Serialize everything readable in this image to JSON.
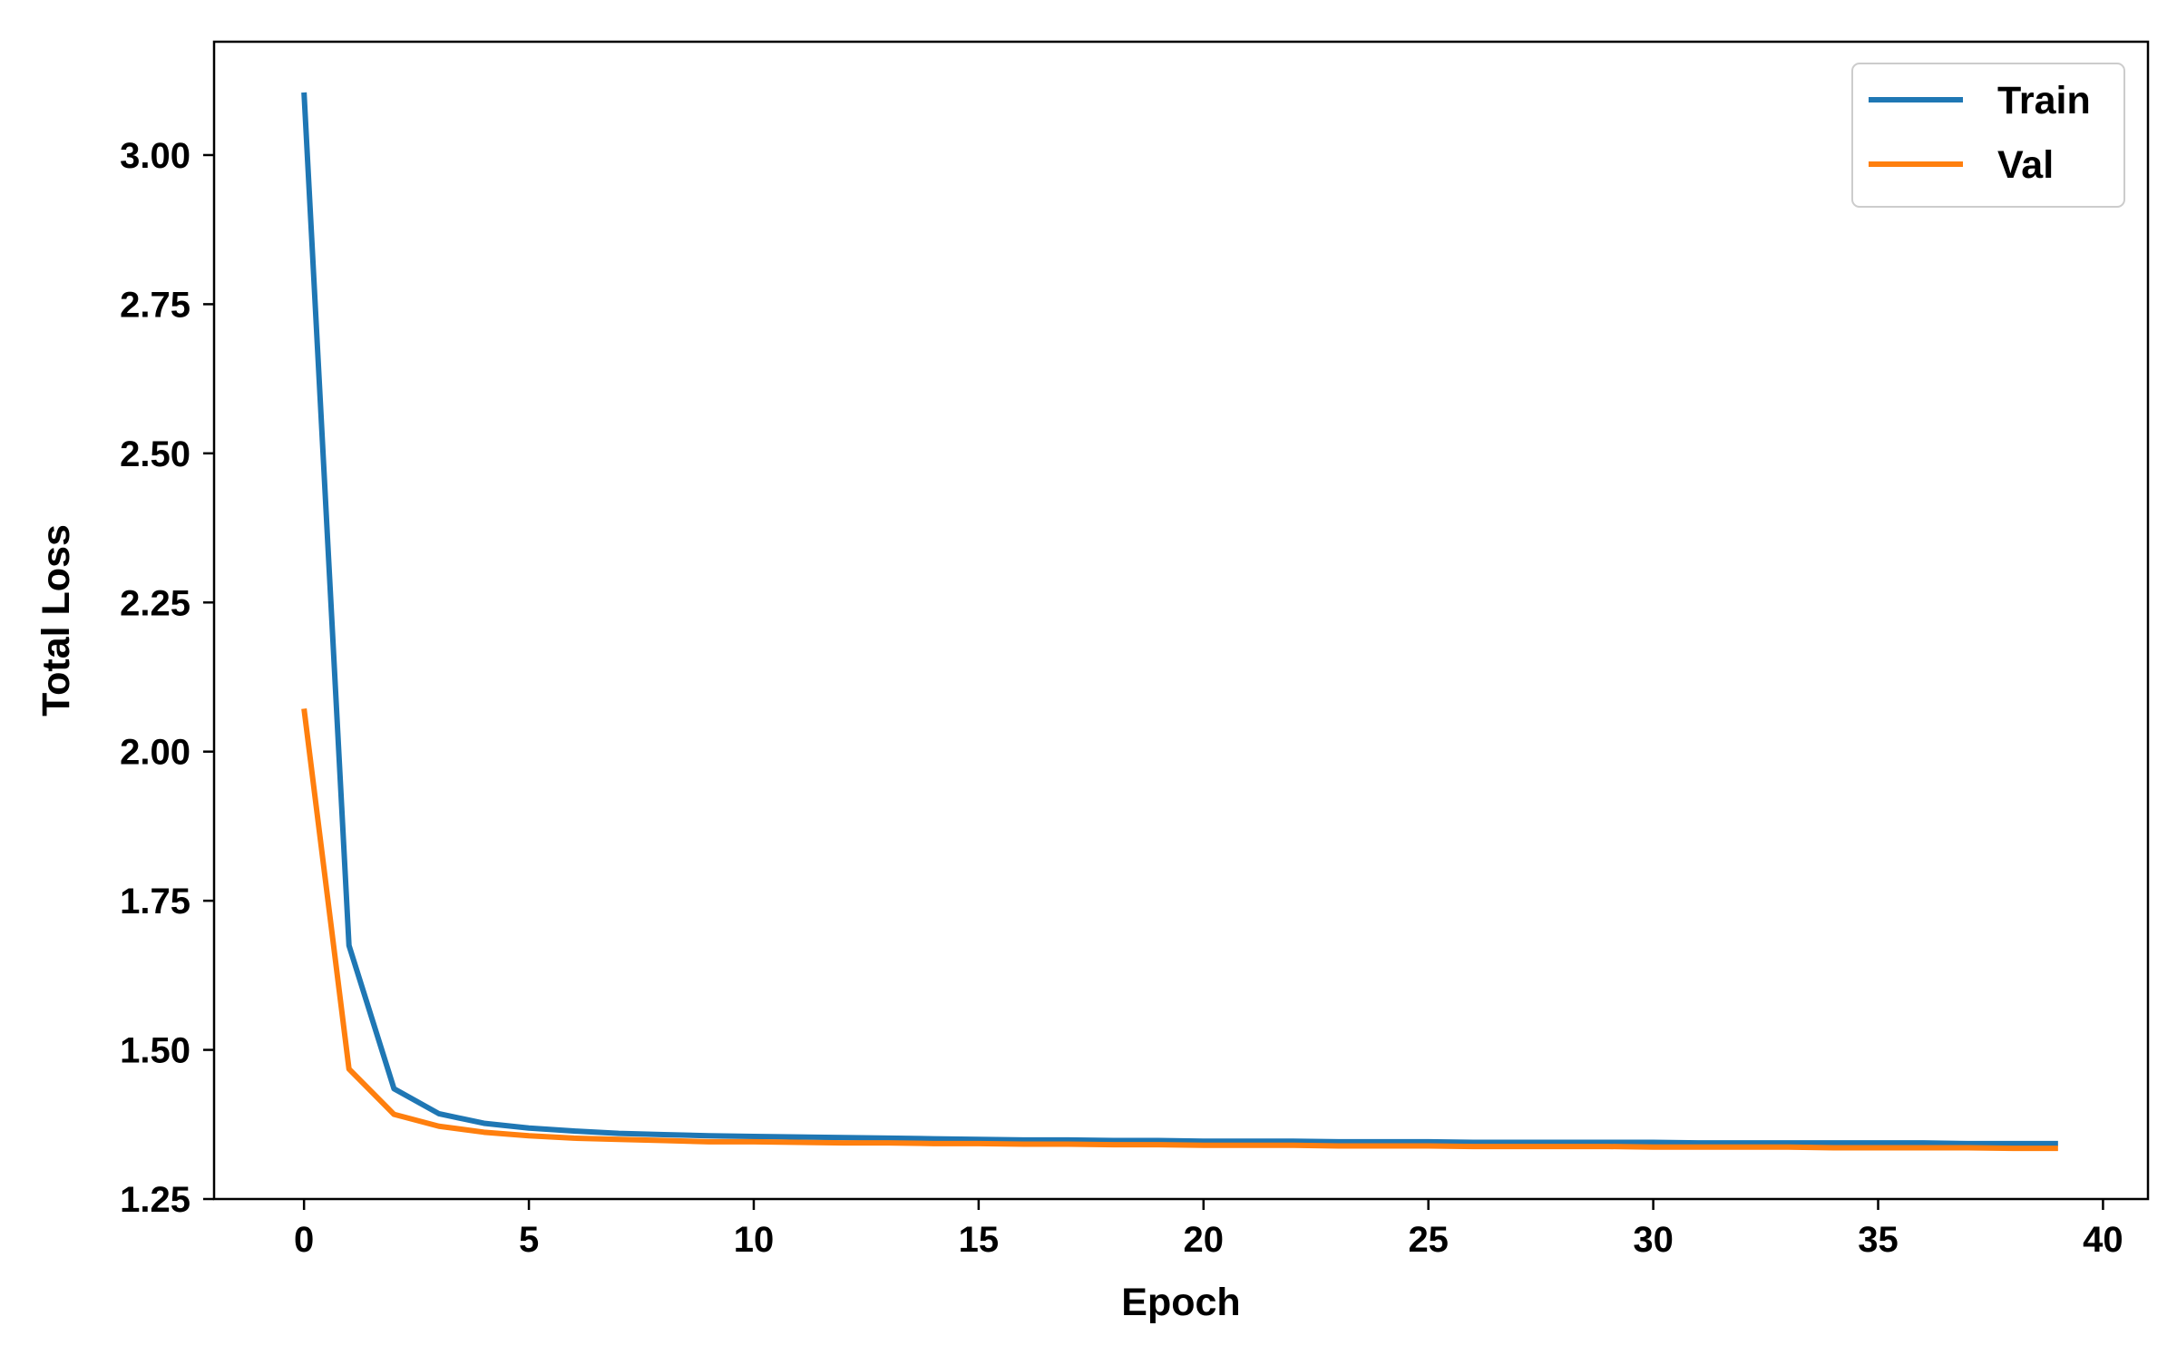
{
  "chart_data": {
    "type": "line",
    "title": "",
    "xlabel": "Epoch",
    "ylabel": "Total Loss",
    "xlim": [
      -2,
      41
    ],
    "ylim": [
      1.25,
      3.19
    ],
    "xticks": [
      0,
      5,
      10,
      15,
      20,
      25,
      30,
      35,
      40
    ],
    "yticks": [
      1.25,
      1.5,
      1.75,
      2.0,
      2.25,
      2.5,
      2.75,
      3.0
    ],
    "xtick_labels": [
      "0",
      "5",
      "10",
      "15",
      "20",
      "25",
      "30",
      "35",
      "40"
    ],
    "ytick_labels": [
      "1.25",
      "1.50",
      "1.75",
      "2.00",
      "2.25",
      "2.50",
      "2.75",
      "3.00"
    ],
    "grid": false,
    "legend_position": "top-right",
    "x": [
      0,
      1,
      2,
      3,
      4,
      5,
      6,
      7,
      8,
      9,
      10,
      11,
      12,
      13,
      14,
      15,
      16,
      17,
      18,
      19,
      20,
      21,
      22,
      23,
      24,
      25,
      26,
      27,
      28,
      29,
      30,
      31,
      32,
      33,
      34,
      35,
      36,
      37,
      38,
      39
    ],
    "series": [
      {
        "name": "Train",
        "color": "#1f77b4",
        "values": [
          3.105,
          1.675,
          1.435,
          1.393,
          1.377,
          1.369,
          1.364,
          1.36,
          1.358,
          1.356,
          1.355,
          1.354,
          1.353,
          1.352,
          1.351,
          1.35,
          1.349,
          1.349,
          1.348,
          1.348,
          1.347,
          1.347,
          1.347,
          1.346,
          1.346,
          1.346,
          1.345,
          1.345,
          1.345,
          1.345,
          1.345,
          1.344,
          1.344,
          1.344,
          1.344,
          1.344,
          1.344,
          1.343,
          1.343,
          1.343
        ]
      },
      {
        "name": "Val",
        "color": "#ff7f0e",
        "values": [
          2.072,
          1.468,
          1.392,
          1.372,
          1.362,
          1.356,
          1.352,
          1.35,
          1.348,
          1.346,
          1.346,
          1.345,
          1.344,
          1.344,
          1.343,
          1.343,
          1.342,
          1.342,
          1.341,
          1.341,
          1.34,
          1.34,
          1.34,
          1.339,
          1.339,
          1.339,
          1.338,
          1.338,
          1.338,
          1.338,
          1.337,
          1.337,
          1.337,
          1.337,
          1.336,
          1.336,
          1.336,
          1.336,
          1.335,
          1.335
        ]
      }
    ]
  }
}
